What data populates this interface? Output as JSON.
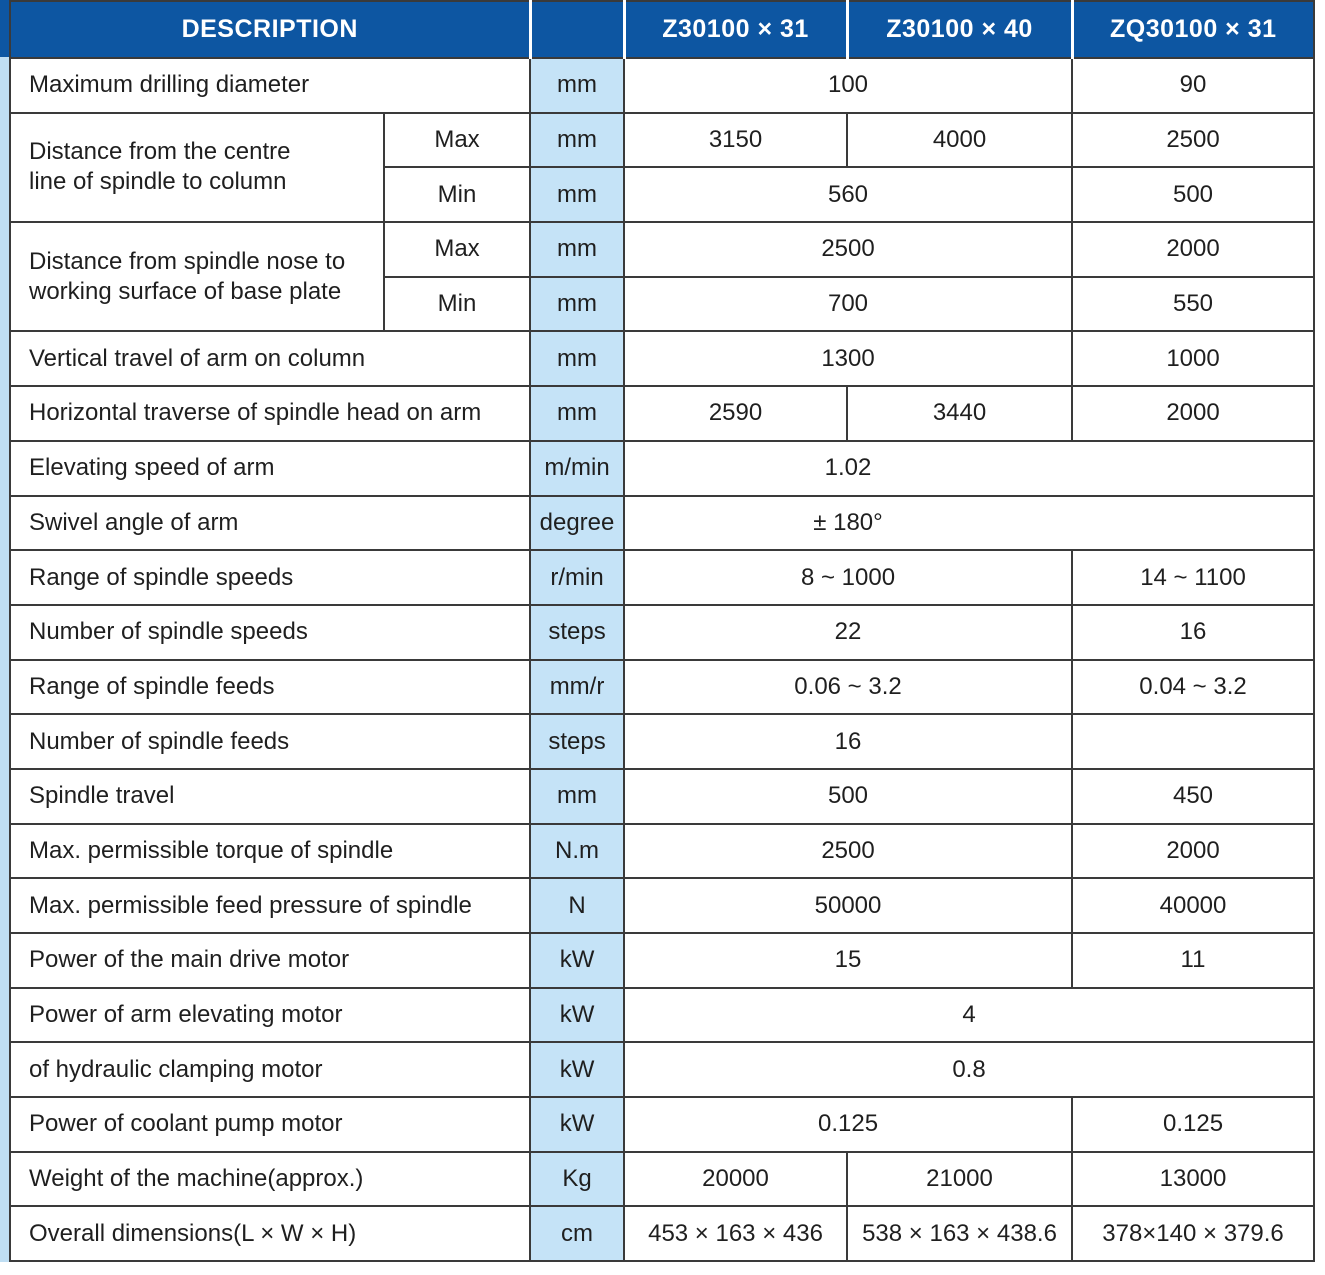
{
  "header": {
    "description": "DESCRIPTION",
    "models": [
      "Z30100 × 31",
      "Z30100 × 40",
      "ZQ30100 × 31"
    ]
  },
  "rows": [
    {
      "label": "Maximum drilling diameter",
      "unit": "mm",
      "v12": "100",
      "v3": "90"
    },
    {
      "group": "Distance from the centre\nline of spindle to column",
      "sub": "Max",
      "unit": "mm",
      "v1": "3150",
      "v2": "4000",
      "v3": "2500"
    },
    {
      "sub": "Min",
      "unit": "mm",
      "v12": "560",
      "v3": "500"
    },
    {
      "group": "Distance from spindle nose to\nworking surface of base plate",
      "sub": "Max",
      "unit": "mm",
      "v12": "2500",
      "v3": "2000"
    },
    {
      "sub": "Min",
      "unit": "mm",
      "v12": "700",
      "v3": "550"
    },
    {
      "label": "Vertical travel of arm on column",
      "unit": "mm",
      "v12": "1300",
      "v3": "1000"
    },
    {
      "label": "Horizontal traverse of spindle head on arm",
      "unit": "mm",
      "v1": "2590",
      "v2": "3440",
      "v3": "2000"
    },
    {
      "label": "Elevating speed of arm",
      "unit": "m/min",
      "vall": "1.02"
    },
    {
      "label": "Swivel angle of arm",
      "unit": "degree",
      "vall": "± 180°"
    },
    {
      "label": "Range of spindle speeds",
      "unit": "r/min",
      "v12": "8 ~ 1000",
      "v3": "14 ~ 1100"
    },
    {
      "label": "Number of spindle speeds",
      "unit": "steps",
      "v12": "22",
      "v3": "16"
    },
    {
      "label": "Range of spindle feeds",
      "unit": "mm/r",
      "v12": "0.06 ~ 3.2",
      "v3": "0.04 ~ 3.2"
    },
    {
      "label": "Number of spindle feeds",
      "unit": "steps",
      "v12": "16",
      "v3": ""
    },
    {
      "label": "Spindle travel",
      "unit": "mm",
      "v12": "500",
      "v3": "450"
    },
    {
      "label": "Max. permissible torque of spindle",
      "unit": "N.m",
      "v12": "2500",
      "v3": "2000"
    },
    {
      "label": "Max. permissible feed pressure of spindle",
      "unit": "N",
      "v12": "50000",
      "v3": "40000"
    },
    {
      "label": "Power of the main drive motor",
      "unit": "kW",
      "v12": "15",
      "v3": "11"
    },
    {
      "label": "Power of arm elevating  motor",
      "unit": "kW",
      "vfull": "4"
    },
    {
      "label": "of hydraulic clamping motor",
      "unit": "kW",
      "vfull": "0.8"
    },
    {
      "label": "Power of coolant pump motor",
      "unit": "kW",
      "v12": "0.125",
      "v3": "0.125"
    },
    {
      "label": "Weight of the machine(approx.)",
      "unit": "Kg",
      "v1": "20000",
      "v2": "21000",
      "v3": "13000"
    },
    {
      "label": "Overall dimensions(L × W × H)",
      "unit": "cm",
      "v1": "453 × 163 × 436",
      "v2": "538 × 163 × 438.6",
      "v3": "378×140 × 379.6"
    }
  ],
  "colors": {
    "header_blue": "#0D56A2",
    "unit_light_blue": "#C5E3F7",
    "accent_strip": "#BFDEF3",
    "border": "#3a3a3a"
  }
}
